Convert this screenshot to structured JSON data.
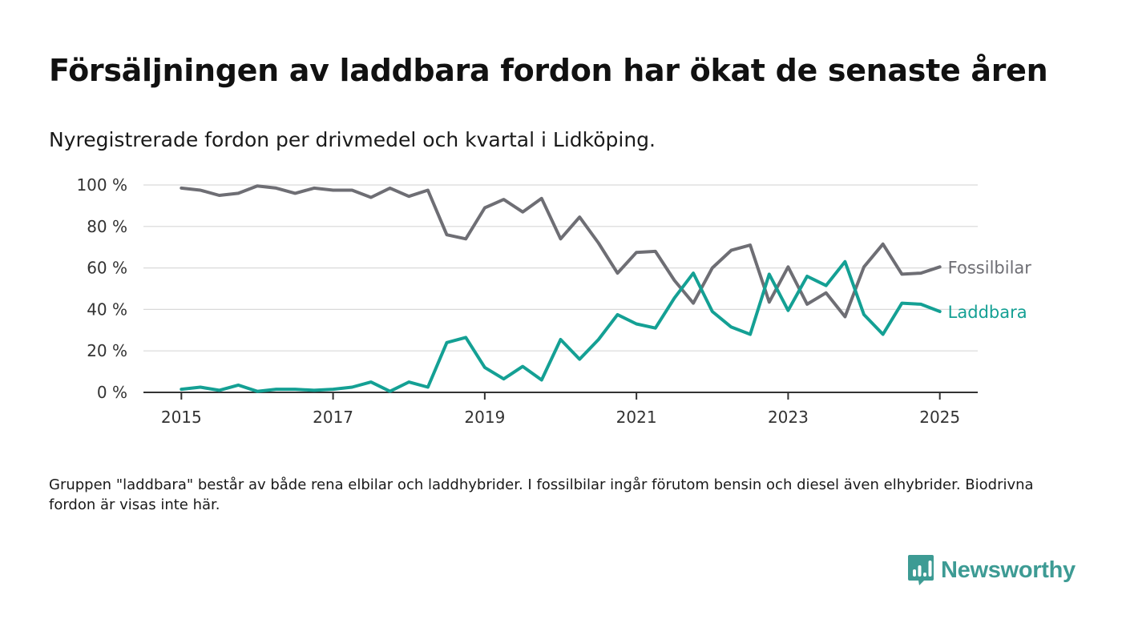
{
  "title": "Försäljningen av laddbara fordon har ökat de senaste åren",
  "subtitle": "Nyregistrerade fordon per drivmedel och kvartal i Lidköping.",
  "footnote": "Gruppen \"laddbara\" består av både rena elbilar och laddhybrider. I fossilbilar ingår förutom bensin och diesel även elhybrider. Biodrivna fordon är visas inte här.",
  "brand": {
    "name": "Newsworthy",
    "icon": "newsworthy-chart-bubble-icon",
    "color": "#3d9b94"
  },
  "chart_data": {
    "type": "line",
    "y_ticks": [
      "0 %",
      "20 %",
      "40 %",
      "60 %",
      "80 %",
      "100 %"
    ],
    "x_ticks": [
      "2015",
      "2017",
      "2019",
      "2021",
      "2023",
      "2025"
    ],
    "ylim": [
      0,
      100
    ],
    "xlim": [
      2014.5,
      2025.5
    ],
    "grid": true,
    "legend": "inline-right",
    "x": [
      2015.0,
      2015.25,
      2015.5,
      2015.75,
      2016.0,
      2016.25,
      2016.5,
      2016.75,
      2017.0,
      2017.25,
      2017.5,
      2017.75,
      2018.0,
      2018.25,
      2018.5,
      2018.75,
      2019.0,
      2019.25,
      2019.5,
      2019.75,
      2020.0,
      2020.25,
      2020.5,
      2020.75,
      2021.0,
      2021.25,
      2021.5,
      2021.75,
      2022.0,
      2022.25,
      2022.5,
      2022.75,
      2023.0,
      2023.25,
      2023.5,
      2023.75,
      2024.0,
      2024.25,
      2024.5,
      2024.75,
      2025.0
    ],
    "series": [
      {
        "name": "Fossilbilar",
        "color": "#6e6e74",
        "values": [
          98.5,
          97.5,
          95,
          96,
          99.5,
          98.5,
          96,
          98.5,
          97.5,
          97.5,
          94,
          98.5,
          94.5,
          97.5,
          76,
          74,
          89,
          93,
          87,
          93.5,
          74,
          84.5,
          72,
          57.5,
          67.5,
          68,
          54,
          43,
          60,
          68.5,
          71,
          43.5,
          60.5,
          42.5,
          48,
          36.5,
          60.5,
          71.5,
          57,
          57.5,
          60.5
        ]
      },
      {
        "name": "Laddbara",
        "color": "#14a094",
        "values": [
          1.5,
          2.5,
          1,
          3.5,
          0.5,
          1.5,
          1.5,
          1,
          1.5,
          2.5,
          5,
          0.5,
          5,
          2.5,
          24,
          26.5,
          12,
          6.5,
          12.5,
          6,
          25.5,
          16,
          25.5,
          37.5,
          33,
          31,
          45.5,
          57.5,
          39,
          31.5,
          28,
          57,
          39.5,
          56,
          51.5,
          63,
          37.5,
          28,
          43,
          42.5,
          39
        ]
      }
    ]
  }
}
